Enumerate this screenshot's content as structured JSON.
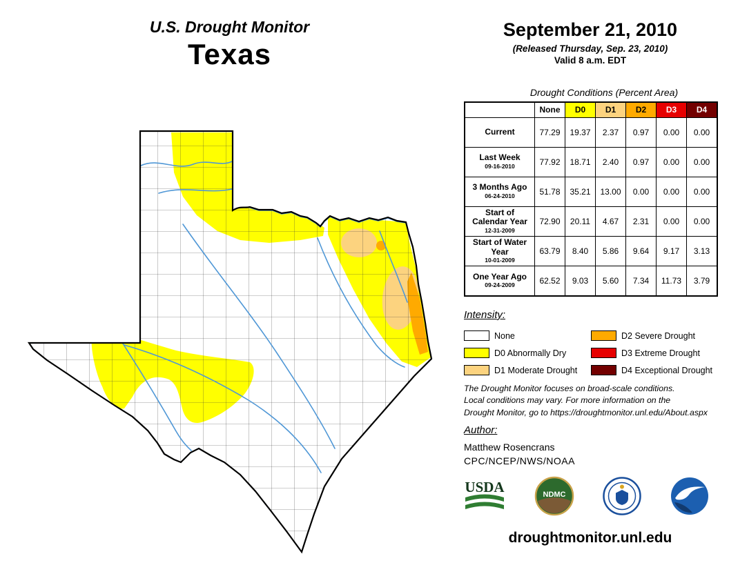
{
  "header": {
    "title": "U.S. Drought Monitor",
    "region": "Texas",
    "date": "September 21, 2010",
    "released": "(Released Thursday, Sep. 23, 2010)",
    "valid": "Valid 8 a.m. EDT"
  },
  "table": {
    "caption": "Drought Conditions (Percent Area)",
    "columns": [
      {
        "label": "None",
        "key": "none",
        "text_color": "#000000"
      },
      {
        "label": "D0",
        "key": "d0",
        "text_color": "#000000"
      },
      {
        "label": "D1",
        "key": "d1",
        "text_color": "#000000"
      },
      {
        "label": "D2",
        "key": "d2",
        "text_color": "#000000"
      },
      {
        "label": "D3",
        "key": "d3",
        "text_color": "#ffffff"
      },
      {
        "label": "D4",
        "key": "d4",
        "text_color": "#ffffff"
      }
    ],
    "rows": [
      {
        "label": "Current",
        "date": "",
        "values": [
          "77.29",
          "19.37",
          "2.37",
          "0.97",
          "0.00",
          "0.00"
        ]
      },
      {
        "label": "Last Week",
        "date": "09-16-2010",
        "values": [
          "77.92",
          "18.71",
          "2.40",
          "0.97",
          "0.00",
          "0.00"
        ]
      },
      {
        "label": "3 Months Ago",
        "date": "06-24-2010",
        "values": [
          "51.78",
          "35.21",
          "13.00",
          "0.00",
          "0.00",
          "0.00"
        ]
      },
      {
        "label": "Start of Calendar Year",
        "date": "12-31-2009",
        "values": [
          "72.90",
          "20.11",
          "4.67",
          "2.31",
          "0.00",
          "0.00"
        ]
      },
      {
        "label": "Start of Water Year",
        "date": "10-01-2009",
        "values": [
          "63.79",
          "8.40",
          "5.86",
          "9.64",
          "9.17",
          "3.13"
        ]
      },
      {
        "label": "One Year Ago",
        "date": "09-24-2009",
        "values": [
          "62.52",
          "9.03",
          "5.60",
          "7.34",
          "11.73",
          "3.79"
        ]
      }
    ]
  },
  "legend": {
    "title": "Intensity:",
    "items": [
      {
        "key": "none",
        "label": "None",
        "color": "#ffffff"
      },
      {
        "key": "d0",
        "label": "D0 Abnormally Dry",
        "color": "#ffff00"
      },
      {
        "key": "d1",
        "label": "D1 Moderate Drought",
        "color": "#fcd37f"
      },
      {
        "key": "d2",
        "label": "D2 Severe Drought",
        "color": "#ffaa00"
      },
      {
        "key": "d3",
        "label": "D3 Extreme Drought",
        "color": "#e60000"
      },
      {
        "key": "d4",
        "label": "D4 Exceptional Drought",
        "color": "#730000"
      }
    ]
  },
  "disclaimer": {
    "lines": [
      "The Drought Monitor focuses on broad-scale conditions.",
      "Local conditions may vary. For more information on the",
      "Drought Monitor, go to https://droughtmonitor.unl.edu/About.aspx"
    ]
  },
  "author": {
    "heading": "Author:",
    "name": "Matthew Rosencrans",
    "org": "CPC/NCEP/NWS/NOAA"
  },
  "logos": {
    "usda_text": "USDA",
    "ndmc_text": "NDMC"
  },
  "footer": {
    "url": "droughtmonitor.unl.edu"
  },
  "map": {
    "river_color": "#4f97d6",
    "county_line_color": "#3a3a3a",
    "outline_color": "#000000"
  }
}
